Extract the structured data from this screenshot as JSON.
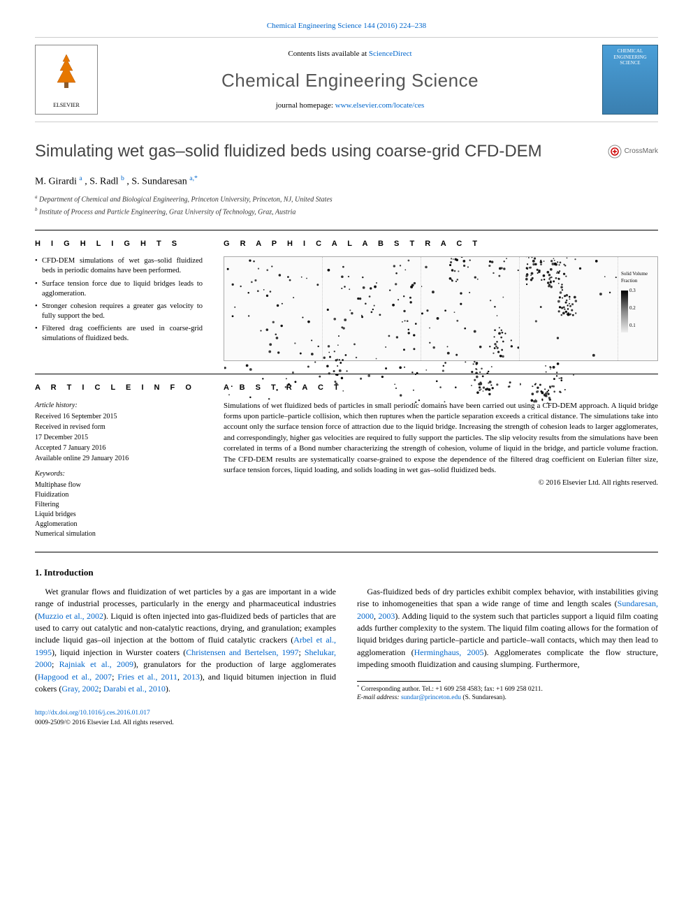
{
  "topJournalRef": "Chemical Engineering Science 144 (2016) 224–238",
  "contentsPrefix": "Contents lists available at ",
  "contentsLink": "ScienceDirect",
  "journalTitle": "Chemical Engineering Science",
  "homepagePrefix": "journal homepage: ",
  "homepageLink": "www.elsevier.com/locate/ces",
  "elsevierName": "ELSEVIER",
  "coverText": "CHEMICAL ENGINEERING SCIENCE",
  "articleTitle": "Simulating wet gas–solid fluidized beds using coarse-grid CFD-DEM",
  "crossmark": "CrossMark",
  "authorsHtmlParts": {
    "a1": "M. Girardi",
    "a1sup": "a",
    "a2": ", S. Radl",
    "a2sup": "b",
    "a3": ", S. Sundaresan",
    "a3sup": "a,",
    "star": "*"
  },
  "affilA": "Department of Chemical and Biological Engineering, Princeton University, Princeton, NJ, United States",
  "affilB": "Institute of Process and Particle Engineering, Graz University of Technology, Graz, Austria",
  "highlightsHeading": "H I G H L I G H T S",
  "highlights": [
    "CFD-DEM simulations of wet gas–solid fluidized beds in periodic domains have been performed.",
    "Surface tension force due to liquid bridges leads to agglomeration.",
    "Stronger cohesion requires a greater gas velocity to fully support the bed.",
    "Filtered drag coefficients are used in coarse-grid simulations of fluidized beds."
  ],
  "graphicalHeading": "G R A P H I C A L  A B S T R A C T",
  "gaLegendLabel": "Solid Volume Fraction",
  "gaTicks": [
    "0.3",
    "0.2",
    "0.1"
  ],
  "articleInfoHeading": "A R T I C L E  I N F O",
  "historyHead": "Article history:",
  "history": [
    "Received 16 September 2015",
    "Received in revised form",
    "17 December 2015",
    "Accepted 7 January 2016",
    "Available online 29 January 2016"
  ],
  "keywordsHead": "Keywords:",
  "keywords": [
    "Multiphase flow",
    "Fluidization",
    "Filtering",
    "Liquid bridges",
    "Agglomeration",
    "Numerical simulation"
  ],
  "abstractHeading": "A B S T R A C T",
  "abstractText": "Simulations of wet fluidized beds of particles in small periodic domains have been carried out using a CFD-DEM approach. A liquid bridge forms upon particle–particle collision, which then ruptures when the particle separation exceeds a critical distance. The simulations take into account only the surface tension force of attraction due to the liquid bridge. Increasing the strength of cohesion leads to larger agglomerates, and correspondingly, higher gas velocities are required to fully support the particles. The slip velocity results from the simulations have been correlated in terms of a Bond number characterizing the strength of cohesion, volume of liquid in the bridge, and particle volume fraction. The CFD-DEM results are systematically coarse-grained to expose the dependence of the filtered drag coefficient on Eulerian filter size, surface tension forces, liquid loading, and solids loading in wet gas–solid fluidized beds.",
  "abstractCopyright": "© 2016 Elsevier Ltd. All rights reserved.",
  "introHeading": "1.  Introduction",
  "bodyParas": {
    "p1a": "Wet granular flows and fluidization of wet particles by a gas are important in a wide range of industrial processes, particularly in the energy and pharmaceutical industries (",
    "p1l1": "Muzzio et al., 2002",
    "p1b": "). Liquid is often injected into gas-fluidized beds of particles that are used to carry out catalytic and non-catalytic reactions, drying, and granulation; examples include liquid gas–oil injection at the bottom of fluid catalytic crackers (",
    "p1l2": "Arbel et al., 1995",
    "p1c": "), liquid injection in Wurster coaters (",
    "p1l3": "Christensen and Bertelsen, 1997",
    "p1d": "; ",
    "p1l4": "Shelukar, 2000",
    "p1e": "; ",
    "p1l5": "Rajniak et al., 2009",
    "p1f": "), granulators for the production of large agglomerates (",
    "p1l6": "Hapgood et al., 2007",
    "p1g": "; ",
    "p1l7": "Fries et al., 2011",
    "p1h": ", ",
    "p1l8": "2013",
    "p1i": "), and liquid bitumen injection in fluid cokers (",
    "p1l9": "Gray, 2002",
    "p1j": "; ",
    "p1l10": "Darabi et al., 2010",
    "p1k": ").",
    "p2a": "Gas-fluidized beds of dry particles exhibit complex behavior, with instabilities giving rise to inhomogeneities that span a wide range of time and length scales (",
    "p2l1": "Sundaresan, 2000",
    "p2b": ", ",
    "p2l2": "2003",
    "p2c": "). Adding liquid to the system such that particles support a liquid film coating adds further complexity to the system. The liquid film coating allows for the formation of liquid bridges during particle–particle and particle–wall contacts, which may then lead to agglomeration (",
    "p2l3": "Herminghaus, 2005",
    "p2d": "). Agglomerates complicate the flow structure, impeding smooth fluidization and causing slumping. Furthermore,"
  },
  "corrAuthor": "Corresponding author. Tel.: +1 609 258 4583; fax: +1 609 258 0211.",
  "emailLabel": "E-mail address: ",
  "email": "sundar@princeton.edu",
  "emailSuffix": " (S. Sundaresan).",
  "doi": "http://dx.doi.org/10.1016/j.ces.2016.01.017",
  "issn": "0009-2509/© 2016 Elsevier Ltd. All rights reserved.",
  "colors": {
    "link": "#0066cc",
    "orange": "#f60",
    "coverTop": "#4a9fd8",
    "coverBottom": "#3a7fb0"
  },
  "gaPanels": [
    {
      "density": 0.15,
      "cluster": 0.1
    },
    {
      "density": 0.25,
      "cluster": 0.3
    },
    {
      "density": 0.35,
      "cluster": 0.6
    },
    {
      "density": 0.45,
      "cluster": 0.9
    }
  ]
}
